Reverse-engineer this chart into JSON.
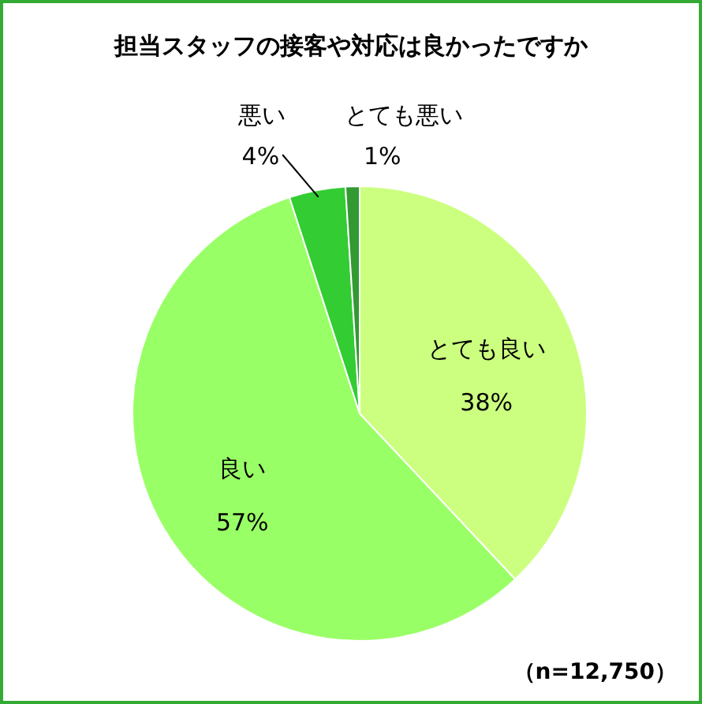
{
  "chart_data": {
    "type": "pie",
    "title": "担当スタッフの接客や対応は良かったですか",
    "categories": [
      "とても良い",
      "良い",
      "悪い",
      "とても悪い"
    ],
    "values": [
      38,
      57,
      4,
      1
    ],
    "colors": [
      "#ccff80",
      "#99ff66",
      "#33cc33",
      "#339933"
    ],
    "value_labels": [
      "38%",
      "57%",
      "4%",
      "1%"
    ],
    "annotations": [
      "（n=12,750）"
    ]
  }
}
